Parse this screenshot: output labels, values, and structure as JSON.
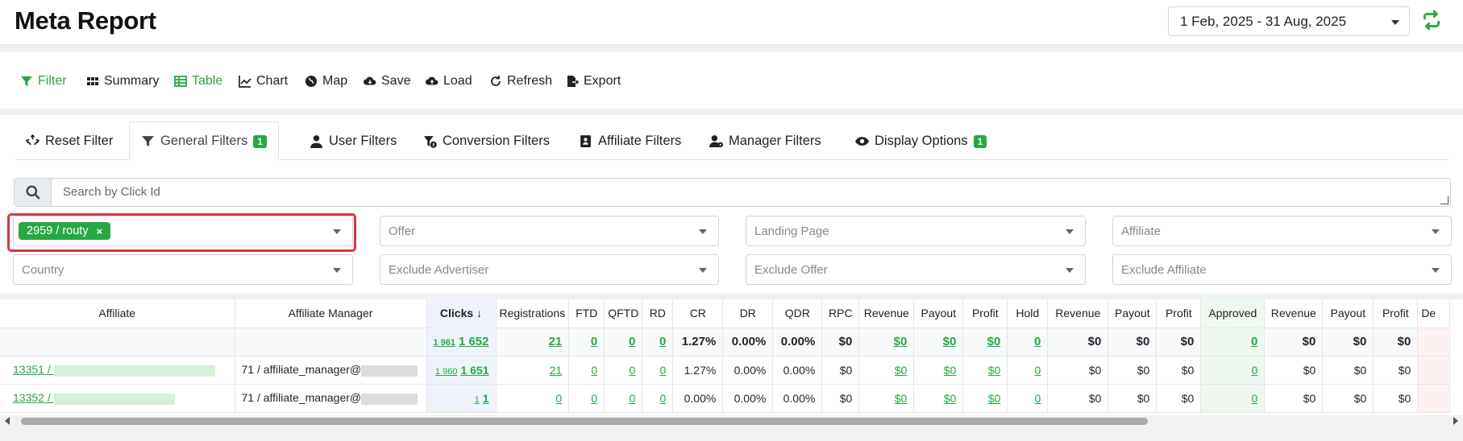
{
  "header": {
    "title": "Meta Report",
    "date_range": "1 Feb, 2025 - 31 Aug, 2025"
  },
  "toolbar": {
    "filter": "Filter",
    "summary": "Summary",
    "table": "Table",
    "chart": "Chart",
    "map": "Map",
    "save": "Save",
    "load": "Load",
    "refresh": "Refresh",
    "export": "Export"
  },
  "tabs": {
    "reset": "Reset Filter",
    "general": "General Filters",
    "general_badge": "1",
    "user": "User Filters",
    "conversion": "Conversion Filters",
    "affiliate": "Affiliate Filters",
    "manager": "Manager Filters",
    "display": "Display Options",
    "display_badge": "1"
  },
  "search": {
    "placeholder": "Search by Click Id"
  },
  "filters": {
    "advertiser_chip": "2959 / routy",
    "chip_remove": "×",
    "offer": "Offer",
    "landing_page": "Landing Page",
    "affiliate": "Affiliate",
    "country": "Country",
    "exclude_advertiser": "Exclude Advertiser",
    "exclude_offer": "Exclude Offer",
    "exclude_affiliate": "Exclude Affiliate"
  },
  "table": {
    "headers": [
      "Affiliate",
      "Affiliate Manager",
      "Clicks ↓",
      "Registrations",
      "FTD",
      "QFTD",
      "RD",
      "CR",
      "DR",
      "QDR",
      "RPC",
      "Revenue",
      "Payout",
      "Profit",
      "Hold",
      "Revenue",
      "Payout",
      "Profit",
      "Approved",
      "Revenue",
      "Payout",
      "Profit",
      "De"
    ],
    "total": {
      "clicks_unique": "1 961",
      "clicks": "1 652",
      "registrations": "21",
      "ftd": "0",
      "qftd": "0",
      "rd": "0",
      "cr": "1.27%",
      "dr": "0.00%",
      "qdr": "0.00%",
      "rpc": "$0",
      "revenue": "$0",
      "payout": "$0",
      "profit": "$0",
      "hold": "0",
      "hold_revenue": "$0",
      "hold_payout": "$0",
      "hold_profit": "$0",
      "approved": "0",
      "approved_revenue": "$0",
      "approved_payout": "$0",
      "approved_profit": "$0"
    },
    "rows": [
      {
        "affiliate": "13351 / ",
        "manager": "71 / affiliate_manager@",
        "clicks_unique": "1 960",
        "clicks": "1 651",
        "registrations": "21",
        "ftd": "0",
        "qftd": "0",
        "rd": "0",
        "cr": "1.27%",
        "dr": "0.00%",
        "qdr": "0.00%",
        "rpc": "$0",
        "revenue": "$0",
        "payout": "$0",
        "profit": "$0",
        "hold": "0",
        "hold_revenue": "$0",
        "hold_payout": "$0",
        "hold_profit": "$0",
        "approved": "0",
        "approved_revenue": "$0",
        "approved_payout": "$0",
        "approved_profit": "$0"
      },
      {
        "affiliate": "13352 / ",
        "manager": "71 / affiliate_manager@",
        "clicks_unique": "1",
        "clicks": "1",
        "registrations": "0",
        "ftd": "0",
        "qftd": "0",
        "rd": "0",
        "cr": "0.00%",
        "dr": "0.00%",
        "qdr": "0.00%",
        "rpc": "$0",
        "revenue": "$0",
        "payout": "$0",
        "profit": "$0",
        "hold": "0",
        "hold_revenue": "$0",
        "hold_payout": "$0",
        "hold_profit": "$0",
        "approved": "0",
        "approved_revenue": "$0",
        "approved_payout": "$0",
        "approved_profit": "$0"
      }
    ]
  },
  "colors": {
    "accent": "#28a745",
    "highlight": "#d9363e",
    "clicks_col": "#eef3fb",
    "approved_col": "#eef8f1"
  }
}
